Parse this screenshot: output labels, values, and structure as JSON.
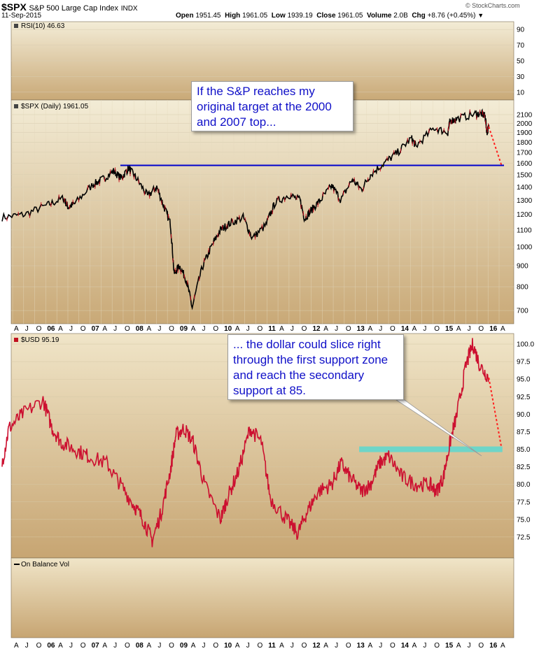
{
  "header": {
    "symbol": "$SPX",
    "name": "S&P 500 Large Cap Index",
    "exchange": "INDX",
    "date": "11-Sep-2015",
    "open_label": "Open",
    "open": "1951.45",
    "high_label": "High",
    "high": "1961.05",
    "low_label": "Low",
    "low": "1939.19",
    "close_label": "Close",
    "close": "1961.05",
    "volume_label": "Volume",
    "volume": "2.0B",
    "chg_label": "Chg",
    "chg": "+8.76 (+0.45%)",
    "watermark": "© StockCharts.com"
  },
  "colors": {
    "panel_bg_top": "#f3ecd6",
    "panel_bg_bottom": "#c9a977",
    "spx_line": "#000000",
    "spx_down": "#cc1020",
    "usd_line": "#cc1030",
    "projection": "#ff2020",
    "support_line": "#0000cc",
    "support_zone": "#5ad8d0",
    "callout_text": "#1010c8"
  },
  "callouts": {
    "spx": "If the S&P reaches my original target at the 2000 and 2007 top...",
    "usd": "... the dollar could slice right through the first support zone and reach the secondary support at 85."
  },
  "chart_data": [
    {
      "type": "line",
      "panel": "rsi",
      "legend": "RSI(10) 46.63",
      "yticks": [
        90,
        70,
        50,
        30,
        10
      ],
      "ylim": [
        0,
        100
      ]
    },
    {
      "type": "line",
      "panel": "spx",
      "legend": "$SPX (Daily) 1961.05",
      "yscale": "log",
      "ylim": [
        650,
        2280
      ],
      "yticks": [
        2100,
        2000,
        1900,
        1800,
        1700,
        1600,
        1500,
        1400,
        1300,
        1200,
        1100,
        1000,
        900,
        800,
        700
      ],
      "x_ticks": [
        "A",
        "J",
        "O",
        "06",
        "A",
        "J",
        "O",
        "07",
        "A",
        "J",
        "O",
        "08",
        "A",
        "J",
        "O",
        "09",
        "A",
        "J",
        "O",
        "10",
        "A",
        "J",
        "O",
        "11",
        "A",
        "J",
        "O",
        "12",
        "A",
        "J",
        "O",
        "13",
        "A",
        "J",
        "O",
        "14",
        "A",
        "J",
        "O",
        "15",
        "A",
        "J",
        "O",
        "16",
        "A"
      ],
      "x": [
        2005.0,
        2005.5,
        2006.0,
        2006.35,
        2006.45,
        2006.6,
        2007.0,
        2007.2,
        2007.45,
        2007.62,
        2007.78,
        2007.95,
        2008.2,
        2008.4,
        2008.55,
        2008.7,
        2008.78,
        2008.9,
        2009.05,
        2009.18,
        2009.4,
        2009.6,
        2009.8,
        2010.0,
        2010.3,
        2010.5,
        2010.8,
        2011.0,
        2011.3,
        2011.55,
        2011.65,
        2011.8,
        2012.0,
        2012.25,
        2012.45,
        2012.7,
        2012.9,
        2013.1,
        2013.4,
        2013.7,
        2014.0,
        2014.1,
        2014.5,
        2014.8,
        2014.85,
        2015.0,
        2015.4,
        2015.55,
        2015.62,
        2015.66,
        2015.7
      ],
      "values": [
        1180,
        1200,
        1265,
        1315,
        1250,
        1275,
        1420,
        1460,
        1530,
        1470,
        1555,
        1470,
        1330,
        1400,
        1260,
        1140,
        860,
        900,
        830,
        710,
        890,
        1000,
        1100,
        1140,
        1180,
        1050,
        1130,
        1280,
        1340,
        1300,
        1170,
        1230,
        1300,
        1410,
        1300,
        1460,
        1380,
        1500,
        1600,
        1700,
        1840,
        1760,
        1950,
        1900,
        2030,
        2050,
        2110,
        2110,
        2080,
        1900,
        1961
      ],
      "projection": {
        "x": [
          2015.7,
          2015.98
        ],
        "values": [
          1961,
          1580
        ]
      },
      "support_level": 1580
    },
    {
      "type": "line",
      "panel": "usd",
      "legend": "$USD 95.19",
      "ylim": [
        69.5,
        101.5
      ],
      "yticks": [
        100.0,
        97.5,
        95.0,
        92.5,
        90.0,
        87.5,
        85.0,
        82.5,
        80.0,
        77.5,
        75.0,
        72.5
      ],
      "x": [
        2005.0,
        2005.15,
        2005.45,
        2005.9,
        2006.1,
        2006.3,
        2006.6,
        2006.9,
        2007.3,
        2007.6,
        2007.9,
        2008.1,
        2008.3,
        2008.5,
        2008.7,
        2008.82,
        2009.0,
        2009.2,
        2009.45,
        2009.8,
        2009.95,
        2010.2,
        2010.45,
        2010.7,
        2010.9,
        2011.25,
        2011.5,
        2011.7,
        2011.95,
        2012.25,
        2012.45,
        2012.65,
        2012.9,
        2013.1,
        2013.3,
        2013.5,
        2013.8,
        2014.1,
        2014.4,
        2014.55,
        2014.7,
        2014.85,
        2015.0,
        2015.2,
        2015.35,
        2015.5,
        2015.7
      ],
      "values": [
        83,
        88,
        90,
        92,
        88,
        86,
        85,
        84,
        83,
        80,
        77,
        75,
        72,
        76,
        82,
        87,
        88,
        86,
        80,
        75,
        78,
        82,
        88,
        86,
        78,
        75,
        73,
        76,
        79,
        80,
        83,
        81,
        79,
        80,
        83,
        84,
        81,
        80,
        80,
        79,
        81,
        86,
        90,
        97,
        100,
        97,
        95.2
      ],
      "projection": {
        "x": [
          2015.7,
          2015.98
        ],
        "values": [
          95.2,
          85.2
        ]
      },
      "support_zone": [
        84.6,
        85.4
      ]
    },
    {
      "type": "line",
      "panel": "obv",
      "legend": "On Balance Vol",
      "x_ticks": [
        "A",
        "J",
        "O",
        "06",
        "A",
        "J",
        "O",
        "07",
        "A",
        "J",
        "O",
        "08",
        "A",
        "J",
        "O",
        "09",
        "A",
        "J",
        "O",
        "10",
        "A",
        "J",
        "O",
        "11",
        "A",
        "J",
        "O",
        "12",
        "A",
        "J",
        "O",
        "13",
        "A",
        "J",
        "O",
        "14",
        "A",
        "J",
        "O",
        "15",
        "A",
        "J",
        "O",
        "16",
        "A"
      ]
    }
  ]
}
